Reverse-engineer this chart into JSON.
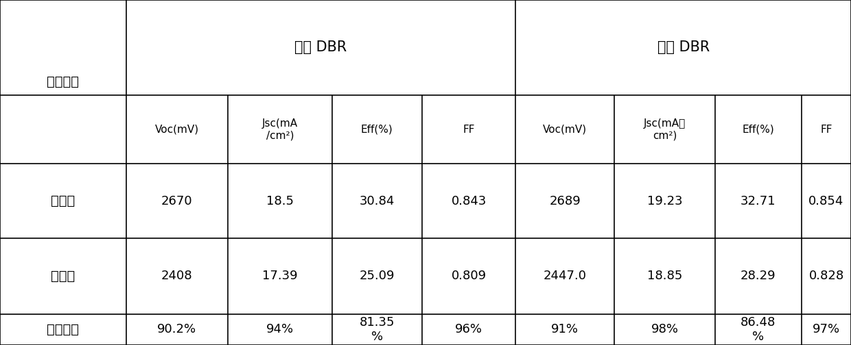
{
  "col1_header": "电池类型",
  "group1_header": "传统 DBR",
  "group2_header": "新型 DBR",
  "sub_headers_trad": [
    "Voc(mV)",
    "Jsc(mA\n/cm²)",
    "Eff(%)",
    "FF"
  ],
  "sub_headers_new": [
    "Voc(mV)",
    "Jsc(mA／\ncm²)",
    "Eff(%)",
    "FF"
  ],
  "row_labels": [
    "辐照前",
    "辐照后",
    "剩余因子"
  ],
  "data": [
    [
      "2670",
      "18.5",
      "30.84",
      "0.843",
      "2689",
      "19.23",
      "32.71",
      "0.854"
    ],
    [
      "2408",
      "17.39",
      "25.09",
      "0.809",
      "2447.0",
      "18.85",
      "28.29",
      "0.828"
    ],
    [
      "90.2%",
      "94%",
      "81.35\n%",
      "96%",
      "91%",
      "98%",
      "86.48\n%",
      "97%"
    ]
  ],
  "bg_color": "#ffffff",
  "text_color": "#000000",
  "line_color": "#000000",
  "col_bounds": [
    0.0,
    0.148,
    0.268,
    0.39,
    0.496,
    0.606,
    0.722,
    0.84,
    0.942,
    1.0
  ],
  "row_bounds": [
    1.0,
    0.725,
    0.525,
    0.31,
    0.09,
    0.0
  ],
  "fs_group": 15,
  "fs_label": 14,
  "fs_sub": 11,
  "fs_data": 13,
  "lw": 1.2
}
